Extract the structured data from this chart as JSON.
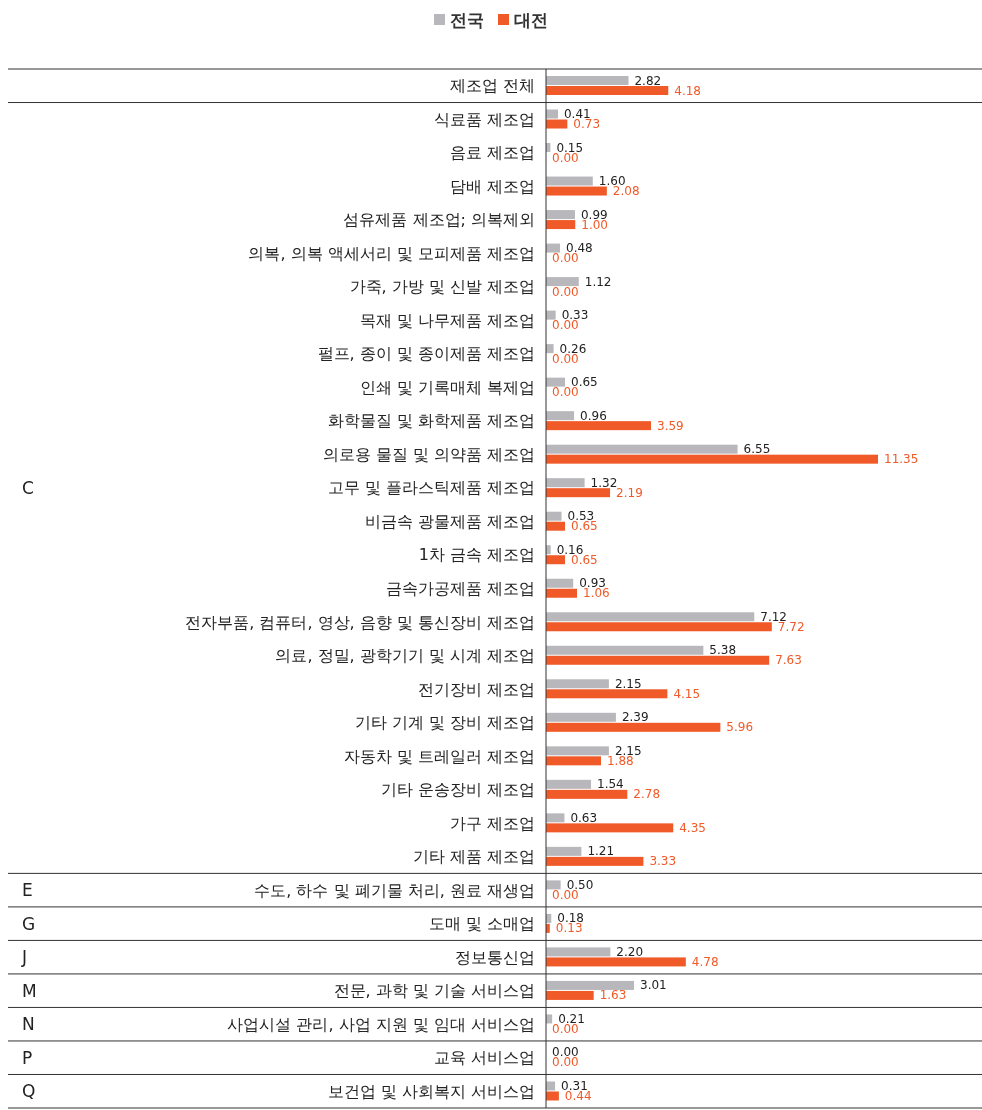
{
  "chart_data": {
    "type": "bar",
    "orientation": "horizontal",
    "legend": "top",
    "categories": [
      "제조업 전체",
      "식료품 제조업",
      "음료 제조업",
      "담배 제조업",
      "섬유제품 제조업; 의복제외",
      "의복, 의복 액세서리 및 모피제품 제조업",
      "가죽, 가방 및 신발 제조업",
      "목재 및 나무제품 제조업",
      "펄프, 종이 및 종이제품 제조업",
      "인쇄 및 기록매체 복제업",
      "화학물질 및 화학제품 제조업",
      "의로용 물질 및 의약품 제조업",
      "고무 및 플라스틱제품 제조업",
      "비금속 광물제품 제조업",
      "1차 금속 제조업",
      "금속가공제품 제조업",
      "전자부품, 컴퓨터, 영상, 음향 및 통신장비 제조업",
      "의료, 정밀, 광학기기 및 시계 제조업",
      "전기장비 제조업",
      "기타 기계 및 장비 제조업",
      "자동차 및 트레일러 제조업",
      "기타 운송장비 제조업",
      "가구 제조업",
      "기타 제품 제조업",
      "수도, 하수 및 폐기물 처리, 원료 재생업",
      "도매 및 소매업",
      "정보통신업",
      "전문, 과학 및 기술 서비스업",
      "사업시설 관리, 사업 지원 및 임대 서비스업",
      "교육 서비스업",
      "보건업 및 사회복지 서비스업"
    ],
    "series": [
      {
        "name": "전국",
        "color": "#b8b8bc",
        "values": [
          2.82,
          0.41,
          0.15,
          1.6,
          0.99,
          0.48,
          1.12,
          0.33,
          0.26,
          0.65,
          0.96,
          6.55,
          1.32,
          0.53,
          0.16,
          0.93,
          7.12,
          5.38,
          2.15,
          2.39,
          2.15,
          1.54,
          0.63,
          1.21,
          0.5,
          0.18,
          2.2,
          3.01,
          0.21,
          0.0,
          0.31
        ],
        "value_labels": [
          "2.82",
          "0.41",
          "0.15",
          "1.60",
          "0.99",
          "0.48",
          "1.12",
          "0.33",
          "0.26",
          "0.65",
          "0.96",
          "6.55",
          "1.32",
          "0.53",
          "0.16",
          "0.93",
          "7.12",
          "5.38",
          "2.15",
          "2.39",
          "2.15",
          "1.54",
          "0.63",
          "1.21",
          "0.50",
          "0.18",
          "2.20",
          "3.01",
          "0.21",
          "0.00",
          "0.31"
        ]
      },
      {
        "name": "대전",
        "color": "#f05a28",
        "values": [
          4.18,
          0.73,
          0.0,
          2.08,
          1.0,
          0.0,
          0.0,
          0.0,
          0.0,
          0.0,
          3.59,
          11.35,
          2.19,
          0.65,
          0.65,
          1.06,
          7.72,
          7.63,
          4.15,
          5.96,
          1.88,
          2.78,
          4.35,
          3.33,
          0.0,
          0.13,
          4.78,
          1.63,
          0.0,
          0.0,
          0.44
        ],
        "value_labels": [
          "4.18",
          "0.73",
          "0.00",
          "2.08",
          "1.00",
          "0.00",
          "0.00",
          "0.00",
          "0.00",
          "0.00",
          "3.59",
          "11.35",
          "2.19",
          "0.65",
          "0.65",
          "1.06",
          "7.72",
          "7.63",
          "4.15",
          "5.96",
          "1.88",
          "2.78",
          "4.35",
          "3.33",
          "0.00",
          "0.13",
          "4.78",
          "1.63",
          "0.00",
          "0.00",
          "0.44"
        ]
      }
    ],
    "annotations": [
      "C",
      "E",
      "G",
      "J",
      "M",
      "N",
      "P",
      "Q"
    ]
  }
}
